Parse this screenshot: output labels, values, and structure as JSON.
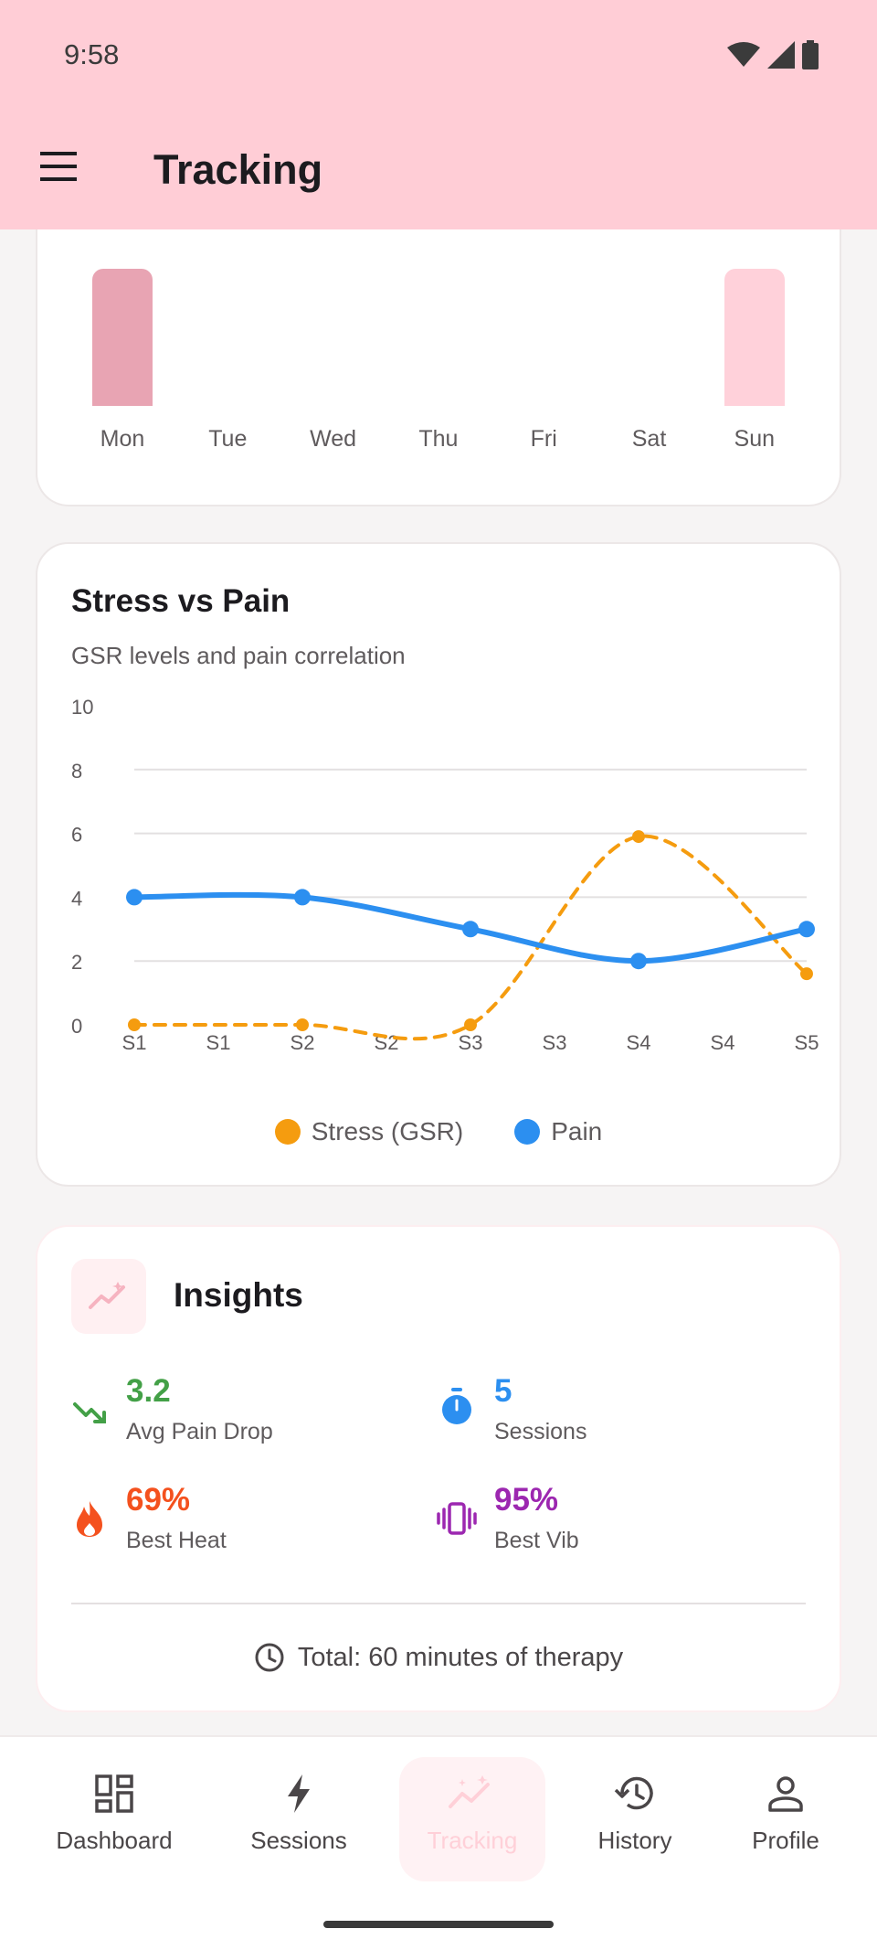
{
  "status_bar": {
    "time": "9:58"
  },
  "app_bar": {
    "title": "Tracking"
  },
  "weekly": {
    "days": [
      {
        "label": "Mon",
        "value": 1,
        "color": "#e8a4b3"
      },
      {
        "label": "Tue",
        "value": 0,
        "color": "#ffd1da"
      },
      {
        "label": "Wed",
        "value": 0,
        "color": "#ffd1da"
      },
      {
        "label": "Thu",
        "value": 0,
        "color": "#ffd1da"
      },
      {
        "label": "Fri",
        "value": 0,
        "color": "#ffd1da"
      },
      {
        "label": "Sat",
        "value": 0,
        "color": "#ffd1da"
      },
      {
        "label": "Sun",
        "value": 1,
        "color": "#ffd1da"
      }
    ]
  },
  "chart_card": {
    "title": "Stress vs Pain",
    "subtitle": "GSR levels and pain correlation"
  },
  "chart_data": {
    "type": "line",
    "categories": [
      "S1",
      "S1",
      "S2",
      "S2",
      "S3",
      "S3",
      "S4",
      "S4",
      "S5"
    ],
    "x": [
      0,
      1,
      2,
      3,
      4,
      5,
      6,
      7,
      8
    ],
    "ylim": [
      0,
      10
    ],
    "yticks": [
      0,
      2,
      4,
      6,
      8,
      10
    ],
    "grid": true,
    "legend_placement": "bottom-center",
    "series": [
      {
        "name": "Stress (GSR)",
        "color": "#f59c0f",
        "style": "dashed",
        "x": [
          0,
          2,
          4,
          6,
          8
        ],
        "values": [
          0,
          0,
          0,
          5.9,
          1.6
        ]
      },
      {
        "name": "Pain",
        "color": "#2c8ff0",
        "style": "solid",
        "x": [
          0,
          2,
          4,
          6,
          8
        ],
        "values": [
          4,
          4,
          3,
          2,
          3
        ]
      }
    ]
  },
  "insights": {
    "title": "Insights",
    "stats": [
      {
        "value": "3.2",
        "label": "Avg Pain Drop",
        "color": "#43a047",
        "icon": "trending-down-icon"
      },
      {
        "value": "5",
        "label": "Sessions",
        "color": "#2c8ff0",
        "icon": "timer-icon"
      },
      {
        "value": "69%",
        "label": "Best Heat",
        "color": "#f4511e",
        "icon": "flame-icon"
      },
      {
        "value": "95%",
        "label": "Best Vib",
        "color": "#9c27b0",
        "icon": "vibration-icon"
      }
    ],
    "total": "Total: 60 minutes of therapy"
  },
  "nav": {
    "items": [
      {
        "label": "Dashboard",
        "icon": "dashboard-icon"
      },
      {
        "label": "Sessions",
        "icon": "bolt-icon"
      },
      {
        "label": "Tracking",
        "icon": "tracking-icon",
        "active": true
      },
      {
        "label": "History",
        "icon": "history-icon"
      },
      {
        "label": "Profile",
        "icon": "profile-icon"
      }
    ]
  }
}
